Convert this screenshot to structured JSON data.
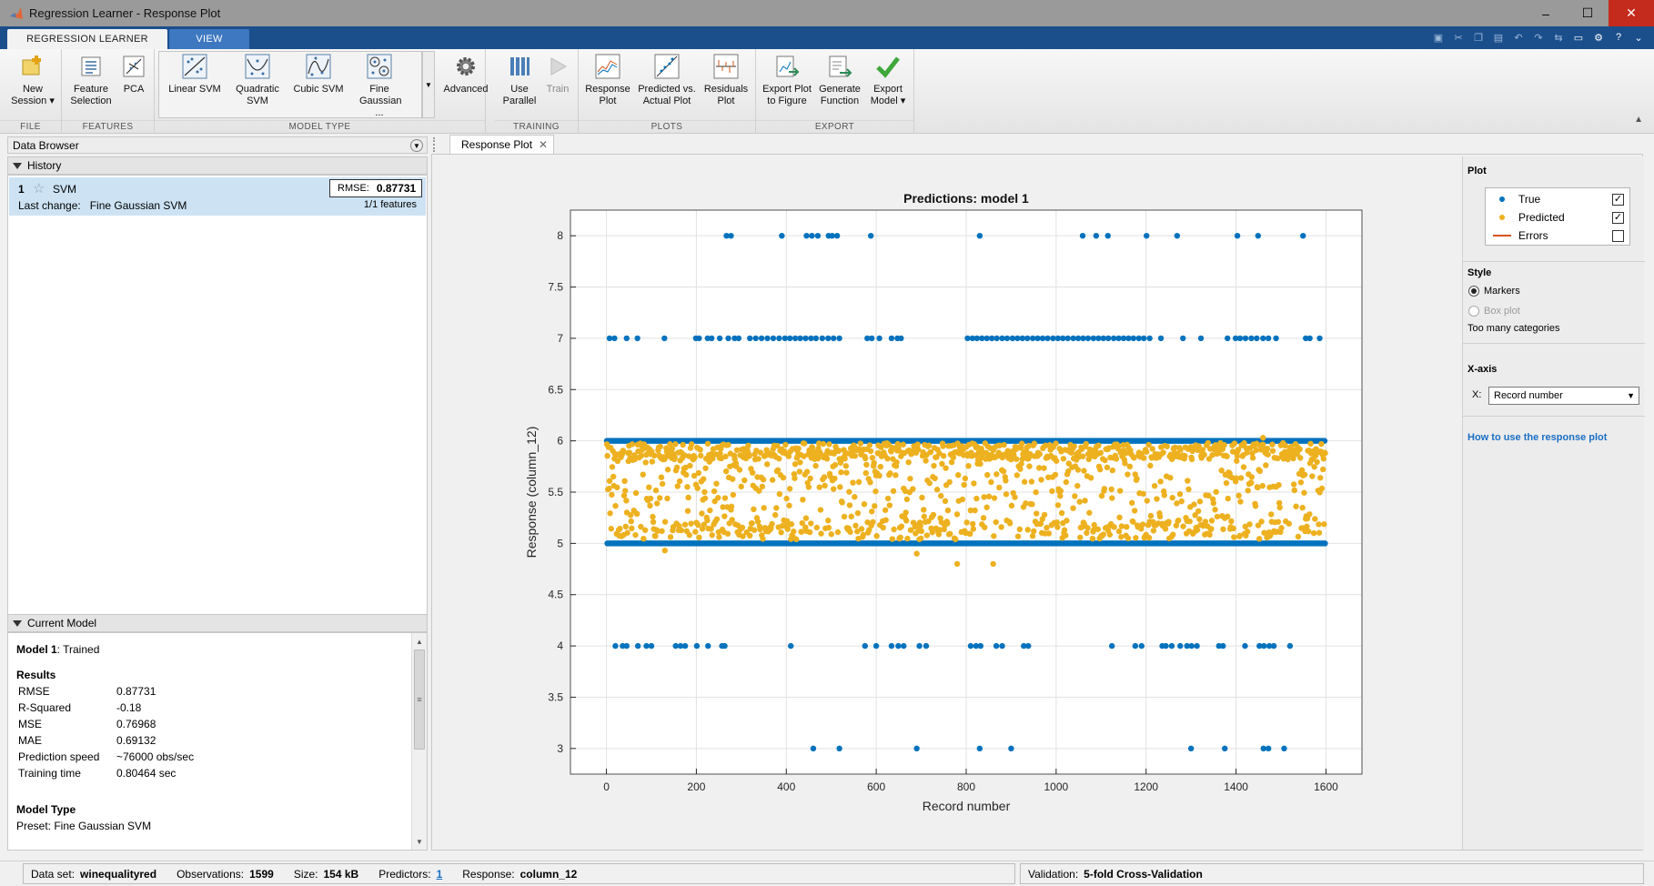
{
  "window": {
    "title": "Regression Learner - Response Plot",
    "min": "–",
    "max": "☐",
    "close": "✕"
  },
  "tabs": {
    "active": "REGRESSION LEARNER",
    "inactive": "VIEW"
  },
  "toolstrip": {
    "file": {
      "label": "FILE",
      "new_session": "New Session ▾"
    },
    "features": {
      "label": "FEATURES",
      "feature_selection": "Feature Selection",
      "pca": "PCA"
    },
    "model_type": {
      "label": "MODEL TYPE",
      "linear_svm": "Linear SVM",
      "quadratic_svm": "Quadratic SVM",
      "cubic_svm": "Cubic SVM",
      "fine_gaussian": "Fine Gaussian ...",
      "advanced": "Advanced"
    },
    "training": {
      "label": "TRAINING",
      "use_parallel": "Use Parallel",
      "train": "Train"
    },
    "plots": {
      "label": "PLOTS",
      "response_plot": "Response Plot",
      "predicted_vs_actual": "Predicted vs. Actual Plot",
      "residuals_plot": "Residuals Plot"
    },
    "export": {
      "label": "EXPORT",
      "export_plot": "Export Plot to Figure",
      "generate_function": "Generate Function",
      "export_model": "Export Model ▾"
    }
  },
  "data_browser": {
    "title": "Data Browser",
    "history_title": "History",
    "item": {
      "num": "1",
      "name": "SVM",
      "rmse_label": "RMSE:",
      "rmse_value": "0.87731",
      "last_change_label": "Last change:",
      "last_change": "Fine Gaussian SVM",
      "features": "1/1 features"
    }
  },
  "current_model": {
    "title": "Current Model",
    "model_name": "Model 1",
    "status": ": Trained",
    "results_title": "Results",
    "results": [
      {
        "k": "RMSE",
        "v": "0.87731"
      },
      {
        "k": "R-Squared",
        "v": "-0.18"
      },
      {
        "k": "MSE",
        "v": "0.76968"
      },
      {
        "k": "MAE",
        "v": "0.69132"
      },
      {
        "k": "Prediction speed",
        "v": "~76000 obs/sec"
      },
      {
        "k": "Training time",
        "v": "0.80464 sec"
      }
    ],
    "model_type_title": "Model Type",
    "preset": "Preset: Fine Gaussian SVM"
  },
  "document_tab": "Response Plot",
  "options": {
    "plot_title": "Plot",
    "legend": {
      "true": "True",
      "predicted": "Predicted",
      "errors": "Errors",
      "true_checked": "✓",
      "pred_checked": "✓",
      "err_checked": ""
    },
    "style_title": "Style",
    "markers": "Markers",
    "box_plot": "Box plot",
    "too_many": "Too many categories",
    "xaxis_title": "X-axis",
    "x_label": "X:",
    "x_value": "Record number",
    "help_link": "How to use the response plot"
  },
  "colors": {
    "true": "#0072bd",
    "predicted": "#edb120",
    "errors": "#d95319"
  },
  "chart_data": {
    "type": "scatter",
    "title": "Predictions: model 1",
    "xlabel": "Record number",
    "ylabel": "Response (column_12)",
    "xlim": [
      -80,
      1680
    ],
    "ylim": [
      2.75,
      8.25
    ],
    "xticks": [
      0,
      200,
      400,
      600,
      800,
      1000,
      1200,
      1400,
      1600
    ],
    "yticks": [
      3,
      3.5,
      4,
      4.5,
      5,
      5.5,
      6,
      6.5,
      7,
      7.5,
      8
    ],
    "grid": true,
    "series": [
      {
        "name": "True",
        "color": "#0072bd",
        "groups": [
          {
            "y": 8,
            "x": [
              267,
              277,
              390,
              445,
              457,
              470,
              494,
              502,
              513,
              588,
              830,
              1059,
              1089,
              1115,
              1201,
              1269,
              1403,
              1449,
              1549
            ]
          },
          {
            "y": 7,
            "x": [
              7,
              18,
              45,
              69,
              129,
              199,
              206,
              225,
              234,
              252,
              271,
              285,
              294,
              319,
              332,
              345,
              358,
              371,
              384,
              397,
              408,
              420,
              431,
              443,
              455,
              466,
              480,
              493,
              505,
              518,
              580,
              590,
              607,
              634,
              647,
              655,
              803,
              814,
              824,
              835,
              846,
              857,
              868,
              880,
              891,
              903,
              914,
              925,
              936,
              948,
              959,
              970,
              981,
              993,
              1004,
              1015,
              1026,
              1038,
              1049,
              1060,
              1071,
              1083,
              1094,
              1105,
              1116,
              1128,
              1139,
              1150,
              1161,
              1172,
              1184,
              1195,
              1208,
              1233,
              1282,
              1322,
              1381,
              1399,
              1409,
              1421,
              1434,
              1446,
              1460,
              1472,
              1489,
              1555,
              1564,
              1586
            ]
          },
          {
            "y": 4,
            "x": [
              20,
              36,
              45,
              70,
              89,
              100,
              154,
              165,
              175,
              201,
              226,
              257,
              263,
              410,
              575,
              600,
              634,
              649,
              661,
              696,
              711,
              810,
              822,
              832,
              867,
              880,
              928,
              938,
              1124,
              1176,
              1190,
              1236,
              1244,
              1257,
              1276,
              1291,
              1301,
              1313,
              1362,
              1371,
              1420,
              1452,
              1462,
              1474,
              1484,
              1520
            ]
          },
          {
            "y": 3,
            "x": [
              460,
              518,
              690,
              830,
              900,
              1300,
              1375,
              1461,
              1472,
              1507
            ]
          }
        ]
      },
      {
        "name": "Predicted",
        "color": "#edb120"
      }
    ]
  },
  "status": {
    "dataset_label": "Data set:",
    "dataset": "winequalityred",
    "obs_label": "Observations:",
    "obs": "1599",
    "size_label": "Size:",
    "size": "154 kB",
    "pred_label": "Predictors:",
    "pred": "1",
    "resp_label": "Response:",
    "resp": "column_12",
    "val_label": "Validation:",
    "val": "5-fold Cross-Validation"
  }
}
